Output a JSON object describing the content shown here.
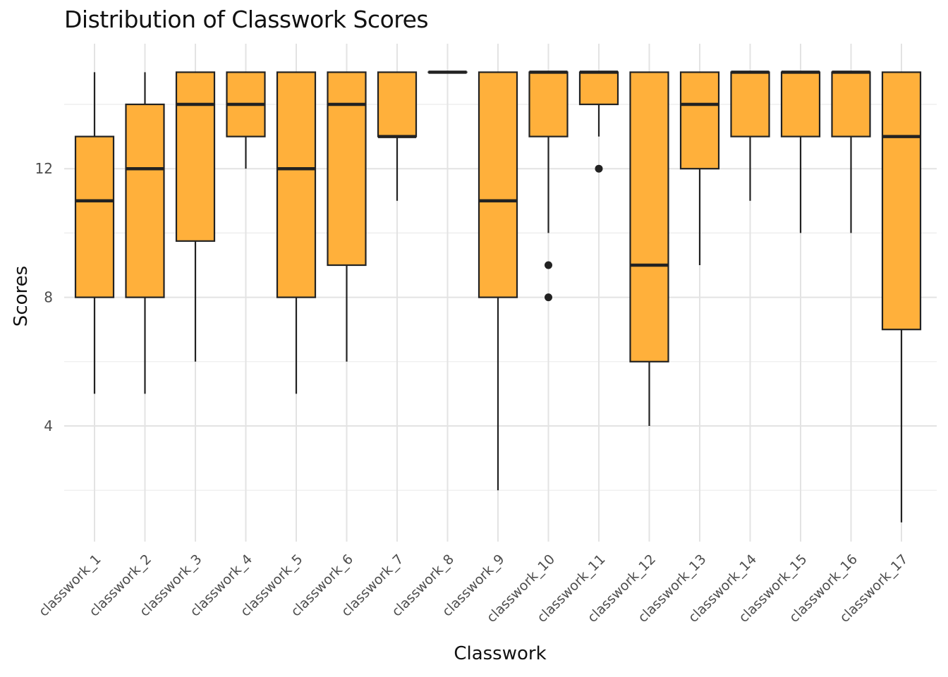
{
  "chart_data": {
    "type": "boxplot",
    "title": "Distribution of Classwork Scores",
    "xlabel": "Classwork",
    "ylabel": "Scores",
    "ylim": [
      0,
      15.8
    ],
    "yticks": [
      4,
      8,
      12
    ],
    "grid": true,
    "fill_color": "#FFB03B",
    "stroke_color": "#222222",
    "categories": [
      "classwork_1",
      "classwork_2",
      "classwork_3",
      "classwork_4",
      "classwork_5",
      "classwork_6",
      "classwork_7",
      "classwork_8",
      "classwork_9",
      "classwork_10",
      "classwork_11",
      "classwork_12",
      "classwork_13",
      "classwork_14",
      "classwork_15",
      "classwork_16",
      "classwork_17"
    ],
    "boxes": [
      {
        "min": 5,
        "q1": 8,
        "median": 11,
        "q3": 13,
        "max": 15,
        "outliers": []
      },
      {
        "min": 5,
        "q1": 8,
        "median": 12,
        "q3": 14,
        "max": 15,
        "outliers": []
      },
      {
        "min": 6,
        "q1": 9.75,
        "median": 14,
        "q3": 15,
        "max": 15,
        "outliers": []
      },
      {
        "min": 12,
        "q1": 13,
        "median": 14,
        "q3": 15,
        "max": 15,
        "outliers": []
      },
      {
        "min": 5,
        "q1": 8,
        "median": 12,
        "q3": 15,
        "max": 15,
        "outliers": []
      },
      {
        "min": 6,
        "q1": 9,
        "median": 14,
        "q3": 15,
        "max": 15,
        "outliers": []
      },
      {
        "min": 11,
        "q1": 13,
        "median": 13,
        "q3": 15,
        "max": 15,
        "outliers": []
      },
      {
        "min": 15,
        "q1": 15,
        "median": 15,
        "q3": 15,
        "max": 15,
        "outliers": []
      },
      {
        "min": 2,
        "q1": 8,
        "median": 11,
        "q3": 15,
        "max": 15,
        "outliers": []
      },
      {
        "min": 10,
        "q1": 13,
        "median": 15,
        "q3": 15,
        "max": 15,
        "outliers": [
          9,
          8
        ]
      },
      {
        "min": 13,
        "q1": 14,
        "median": 15,
        "q3": 15,
        "max": 15,
        "outliers": [
          12
        ]
      },
      {
        "min": 4,
        "q1": 6,
        "median": 9,
        "q3": 15,
        "max": 15,
        "outliers": []
      },
      {
        "min": 9,
        "q1": 12,
        "median": 14,
        "q3": 15,
        "max": 15,
        "outliers": []
      },
      {
        "min": 11,
        "q1": 13,
        "median": 15,
        "q3": 15,
        "max": 15,
        "outliers": []
      },
      {
        "min": 10,
        "q1": 13,
        "median": 15,
        "q3": 15,
        "max": 15,
        "outliers": []
      },
      {
        "min": 10,
        "q1": 13,
        "median": 15,
        "q3": 15,
        "max": 15,
        "outliers": []
      },
      {
        "min": 1,
        "q1": 7,
        "median": 13,
        "q3": 15,
        "max": 15,
        "outliers": []
      }
    ]
  }
}
